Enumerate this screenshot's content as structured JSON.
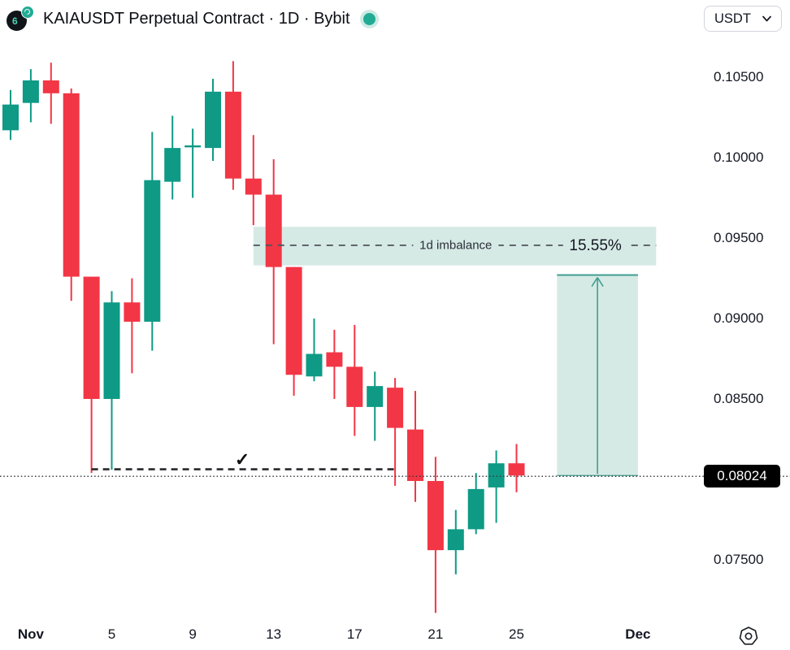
{
  "header": {
    "title": "KAIAUSDT Perpetual Contract · 1D · Bybit",
    "logo_glyph": "6",
    "market_status": "open",
    "currency_button": {
      "label": "USDT"
    }
  },
  "colors": {
    "up": "#0e9a85",
    "down": "#f23645",
    "zone_fill": "#d6eae5",
    "teal": "#3f9e90",
    "dash_gray": "#4d525b",
    "dash_dark": "#26282c",
    "dotted": "#3a3d42",
    "text": "#131722",
    "badge_bg": "#000000"
  },
  "chart_data": {
    "type": "candlestick",
    "title": "KAIAUSDT Perpetual Contract · 1D · Bybit",
    "symbol": "KAIAUSDT",
    "interval": "1D",
    "exchange": "Bybit",
    "legend_position": "none",
    "grid": false,
    "y_axis_side": "right",
    "y_tick_labels": [
      "0.10500",
      "0.10000",
      "0.09500",
      "0.09000",
      "0.08500",
      "0.07500"
    ],
    "x_ticks": [
      {
        "label": "Nov",
        "day": 1,
        "bold": true
      },
      {
        "label": "5",
        "day": 5,
        "bold": false
      },
      {
        "label": "9",
        "day": 9,
        "bold": false
      },
      {
        "label": "13",
        "day": 13,
        "bold": false
      },
      {
        "label": "17",
        "day": 17,
        "bold": false
      },
      {
        "label": "21",
        "day": 21,
        "bold": false
      },
      {
        "label": "25",
        "day": 25,
        "bold": false
      },
      {
        "label": "Dec",
        "day": 31,
        "bold": true
      }
    ],
    "candles": [
      {
        "d": 0,
        "o": 0.1017,
        "h": 0.1042,
        "l": 0.1011,
        "c": 0.1033
      },
      {
        "d": 1,
        "o": 0.1034,
        "h": 0.1055,
        "l": 0.1022,
        "c": 0.1048
      },
      {
        "d": 2,
        "o": 0.1048,
        "h": 0.1059,
        "l": 0.1021,
        "c": 0.104
      },
      {
        "d": 3,
        "o": 0.104,
        "h": 0.1043,
        "l": 0.0911,
        "c": 0.0926
      },
      {
        "d": 4,
        "o": 0.0926,
        "h": 0.0926,
        "l": 0.0804,
        "c": 0.085
      },
      {
        "d": 5,
        "o": 0.085,
        "h": 0.0917,
        "l": 0.0806,
        "c": 0.091
      },
      {
        "d": 6,
        "o": 0.091,
        "h": 0.0925,
        "l": 0.0866,
        "c": 0.0898
      },
      {
        "d": 7,
        "o": 0.0898,
        "h": 0.1016,
        "l": 0.088,
        "c": 0.0986
      },
      {
        "d": 8,
        "o": 0.0985,
        "h": 0.1026,
        "l": 0.0974,
        "c": 0.1006
      },
      {
        "d": 9,
        "o": 0.1007,
        "h": 0.1018,
        "l": 0.0975,
        "c": 0.1007
      },
      {
        "d": 10,
        "o": 0.1006,
        "h": 0.1049,
        "l": 0.0998,
        "c": 0.1041
      },
      {
        "d": 11,
        "o": 0.1041,
        "h": 0.106,
        "l": 0.098,
        "c": 0.0987
      },
      {
        "d": 12,
        "o": 0.0987,
        "h": 0.1014,
        "l": 0.0958,
        "c": 0.0977
      },
      {
        "d": 13,
        "o": 0.0977,
        "h": 0.0999,
        "l": 0.0884,
        "c": 0.0932
      },
      {
        "d": 14,
        "o": 0.0932,
        "h": 0.0932,
        "l": 0.0852,
        "c": 0.0865
      },
      {
        "d": 15,
        "o": 0.0864,
        "h": 0.09,
        "l": 0.0861,
        "c": 0.0878
      },
      {
        "d": 16,
        "o": 0.0879,
        "h": 0.0893,
        "l": 0.085,
        "c": 0.087
      },
      {
        "d": 17,
        "o": 0.087,
        "h": 0.0896,
        "l": 0.0827,
        "c": 0.0845
      },
      {
        "d": 18,
        "o": 0.0845,
        "h": 0.0867,
        "l": 0.0824,
        "c": 0.0858
      },
      {
        "d": 19,
        "o": 0.0857,
        "h": 0.0863,
        "l": 0.0796,
        "c": 0.0832
      },
      {
        "d": 20,
        "o": 0.0831,
        "h": 0.0855,
        "l": 0.0786,
        "c": 0.0799
      },
      {
        "d": 21,
        "o": 0.0799,
        "h": 0.0814,
        "l": 0.0717,
        "c": 0.0756
      },
      {
        "d": 22,
        "o": 0.0756,
        "h": 0.0781,
        "l": 0.0741,
        "c": 0.0769
      },
      {
        "d": 23,
        "o": 0.0769,
        "h": 0.0804,
        "l": 0.0766,
        "c": 0.0794
      },
      {
        "d": 24,
        "o": 0.0795,
        "h": 0.0818,
        "l": 0.0773,
        "c": 0.081
      },
      {
        "d": 25,
        "o": 0.081,
        "h": 0.0822,
        "l": 0.0792,
        "c": 0.08024
      }
    ],
    "current_price": {
      "label": "0.08024",
      "value": 0.08024
    },
    "annotations": {
      "imbalance_zone": {
        "day_start": 12,
        "day_end": 31.9,
        "price_top": 0.0957,
        "price_bottom": 0.0933,
        "mid_price": 0.09455,
        "label": "1d imbalance",
        "label_day": 22,
        "pct_label": "15.55%",
        "pct_day": 28.9
      },
      "projection_box": {
        "day_start": 27,
        "day_end": 31,
        "price_top": 0.0927,
        "price_bottom": 0.08024,
        "arrow": "up"
      },
      "swept_level": {
        "price": 0.0805,
        "day_start": 4,
        "day_end": 19
      },
      "check_mark": {
        "symbol": "✓",
        "day": 11.45,
        "price": 0.0812
      }
    }
  },
  "footer": {
    "settings_icon": "chart-quick-settings"
  }
}
